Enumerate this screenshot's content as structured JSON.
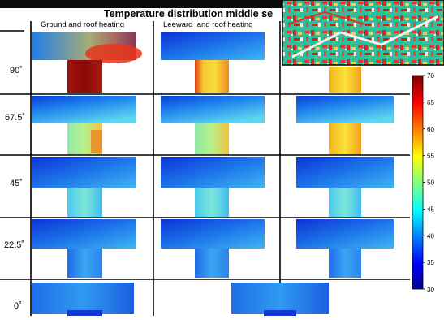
{
  "figure": {
    "title": "Temperature distribution middle se",
    "columns": [
      "Ground and roof heating",
      "Leeward  and roof heating"
    ],
    "rows": [
      "90˚",
      "67.5˚",
      "45˚",
      "22.5˚",
      "0˚"
    ],
    "colorbar": {
      "ticks": [
        "70",
        "65",
        "60",
        "55",
        "50",
        "45",
        "40",
        "35",
        "30"
      ],
      "range": [
        30,
        70
      ]
    }
  }
}
